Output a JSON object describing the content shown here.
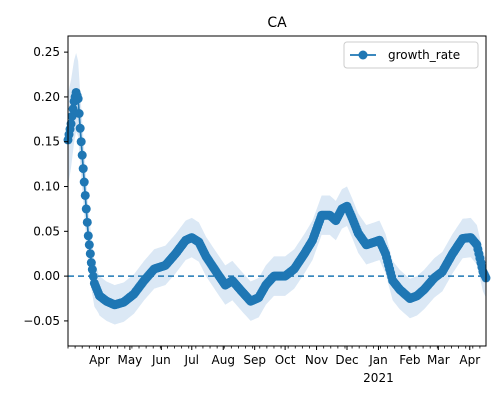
{
  "chart_data": {
    "type": "line",
    "title": "CA",
    "xlabel": "",
    "ylabel": "",
    "x_range": [
      "2020-03-01",
      "2021-04-17"
    ],
    "ylim": [
      -0.078,
      0.268
    ],
    "y_ticks": [
      -0.05,
      0.0,
      0.05,
      0.1,
      0.15,
      0.2,
      0.25
    ],
    "y_tick_labels": [
      "−0.05",
      "0.00",
      "0.05",
      "0.10",
      "0.15",
      "0.20",
      "0.25"
    ],
    "x_ticks": [
      {
        "date": "2020-04-01",
        "label": "Apr"
      },
      {
        "date": "2020-05-01",
        "label": "May"
      },
      {
        "date": "2020-06-01",
        "label": "Jun"
      },
      {
        "date": "2020-07-01",
        "label": "Jul"
      },
      {
        "date": "2020-08-01",
        "label": "Aug"
      },
      {
        "date": "2020-09-01",
        "label": "Sep"
      },
      {
        "date": "2020-10-01",
        "label": "Oct"
      },
      {
        "date": "2020-11-01",
        "label": "Nov"
      },
      {
        "date": "2020-12-01",
        "label": "Dec"
      },
      {
        "date": "2021-01-01",
        "label": "Jan",
        "sublabel": "2021"
      },
      {
        "date": "2021-02-01",
        "label": "Feb"
      },
      {
        "date": "2021-03-01",
        "label": "Mar"
      },
      {
        "date": "2021-04-01",
        "label": "Apr"
      }
    ],
    "grid": false,
    "legend": {
      "placement": "top-right",
      "entries": [
        "growth_rate"
      ]
    },
    "reference_line": {
      "y": 0.0,
      "style": "dashed"
    },
    "colors": {
      "series": "#1f77b4",
      "band": "#dbe8f5"
    },
    "series": [
      {
        "name": "growth_rate",
        "marker": "circle",
        "band_halfwidth": 0.022,
        "points": [
          [
            "2020-03-01",
            0.152
          ],
          [
            "2020-03-04",
            0.17
          ],
          [
            "2020-03-07",
            0.195
          ],
          [
            "2020-03-09",
            0.205
          ],
          [
            "2020-03-11",
            0.198
          ],
          [
            "2020-03-13",
            0.165
          ],
          [
            "2020-03-15",
            0.135
          ],
          [
            "2020-03-17",
            0.105
          ],
          [
            "2020-03-19",
            0.075
          ],
          [
            "2020-03-21",
            0.045
          ],
          [
            "2020-03-24",
            0.015
          ],
          [
            "2020-03-27",
            -0.008
          ],
          [
            "2020-04-01",
            -0.022
          ],
          [
            "2020-04-08",
            -0.028
          ],
          [
            "2020-04-16",
            -0.032
          ],
          [
            "2020-04-25",
            -0.029
          ],
          [
            "2020-05-05",
            -0.02
          ],
          [
            "2020-05-15",
            -0.005
          ],
          [
            "2020-05-25",
            0.008
          ],
          [
            "2020-06-05",
            0.012
          ],
          [
            "2020-06-15",
            0.025
          ],
          [
            "2020-06-25",
            0.04
          ],
          [
            "2020-07-01",
            0.043
          ],
          [
            "2020-07-08",
            0.038
          ],
          [
            "2020-07-15",
            0.022
          ],
          [
            "2020-07-25",
            0.005
          ],
          [
            "2020-08-03",
            -0.01
          ],
          [
            "2020-08-10",
            -0.005
          ],
          [
            "2020-08-20",
            -0.018
          ],
          [
            "2020-08-28",
            -0.028
          ],
          [
            "2020-09-05",
            -0.024
          ],
          [
            "2020-09-12",
            -0.01
          ],
          [
            "2020-09-20",
            0.0
          ],
          [
            "2020-10-01",
            0.0
          ],
          [
            "2020-10-10",
            0.008
          ],
          [
            "2020-10-20",
            0.025
          ],
          [
            "2020-10-28",
            0.04
          ],
          [
            "2020-11-06",
            0.068
          ],
          [
            "2020-11-14",
            0.068
          ],
          [
            "2020-11-20",
            0.062
          ],
          [
            "2020-11-26",
            0.075
          ],
          [
            "2020-12-01",
            0.078
          ],
          [
            "2020-12-06",
            0.065
          ],
          [
            "2020-12-12",
            0.048
          ],
          [
            "2020-12-20",
            0.035
          ],
          [
            "2020-12-28",
            0.038
          ],
          [
            "2021-01-02",
            0.04
          ],
          [
            "2021-01-08",
            0.025
          ],
          [
            "2021-01-15",
            -0.005
          ],
          [
            "2021-01-22",
            -0.015
          ],
          [
            "2021-02-01",
            -0.025
          ],
          [
            "2021-02-08",
            -0.022
          ],
          [
            "2021-02-15",
            -0.015
          ],
          [
            "2021-02-25",
            -0.002
          ],
          [
            "2021-03-05",
            0.005
          ],
          [
            "2021-03-15",
            0.025
          ],
          [
            "2021-03-25",
            0.042
          ],
          [
            "2021-04-02",
            0.043
          ],
          [
            "2021-04-08",
            0.035
          ],
          [
            "2021-04-14",
            0.005
          ],
          [
            "2021-04-17",
            -0.002
          ]
        ]
      }
    ]
  }
}
